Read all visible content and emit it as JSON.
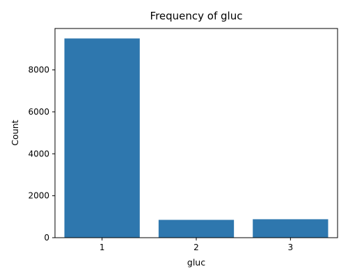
{
  "chart_data": {
    "type": "bar",
    "title": "Frequency of gluc",
    "xlabel": "gluc",
    "ylabel": "Count",
    "categories": [
      "1",
      "2",
      "3"
    ],
    "values": [
      9500,
      850,
      880
    ],
    "ylim": [
      0,
      9975
    ],
    "yticks": [
      0,
      2000,
      4000,
      6000,
      8000
    ],
    "grid": false,
    "bar_color": "#2e77ae"
  }
}
